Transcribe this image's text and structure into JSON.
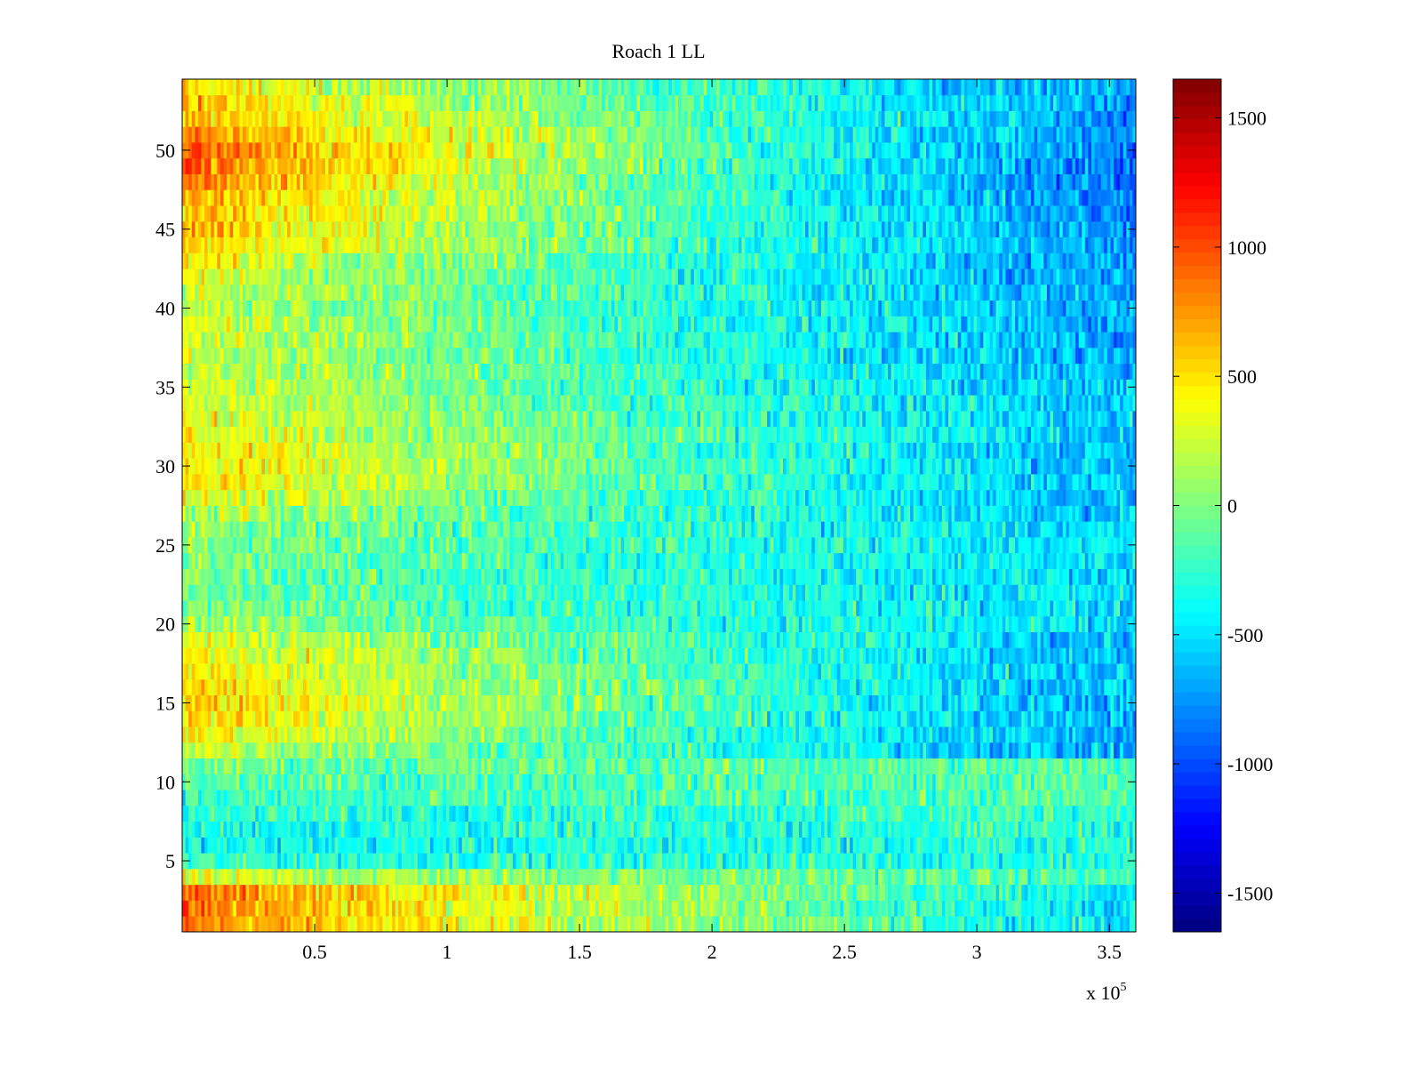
{
  "chart_data": {
    "type": "heatmap",
    "title": "Roach 1 LL",
    "xlabel": "",
    "ylabel": "",
    "colormap": "jet",
    "xlim": [
      0,
      360000
    ],
    "ylim": [
      0.5,
      54.5
    ],
    "x_ticks": [
      50000,
      100000,
      150000,
      200000,
      250000,
      300000,
      350000
    ],
    "x_tick_labels": [
      "0.5",
      "1",
      "1.5",
      "2",
      "2.5",
      "3",
      "3.5"
    ],
    "x_exponent_label": {
      "prefix": "x 10",
      "power": "5"
    },
    "y_ticks": [
      5,
      10,
      15,
      20,
      25,
      30,
      35,
      40,
      45,
      50
    ],
    "y_tick_labels": [
      "5",
      "10",
      "15",
      "20",
      "25",
      "30",
      "35",
      "40",
      "45",
      "50"
    ],
    "rows": 54,
    "colorbar": {
      "range": [
        -1650,
        1650
      ],
      "ticks": [
        -1500,
        -1000,
        -500,
        0,
        500,
        1000,
        1500
      ],
      "tick_labels": [
        "-1500",
        "-1000",
        "-500",
        "0",
        "500",
        "1000",
        "1500"
      ]
    },
    "row_trend": {
      "description": "approximate mean value per row at x=0 and x=3.6e5 (noisy banded heatmap)",
      "row_start_value": [
        820,
        860,
        880,
        250,
        -250,
        -400,
        -350,
        -300,
        -250,
        -150,
        -50,
        300,
        450,
        550,
        600,
        550,
        500,
        450,
        350,
        150,
        0,
        -20,
        -30,
        -10,
        50,
        100,
        200,
        350,
        500,
        550,
        500,
        400,
        350,
        300,
        300,
        300,
        250,
        300,
        300,
        250,
        300,
        350,
        450,
        550,
        650,
        700,
        750,
        850,
        950,
        950,
        850,
        700,
        600,
        500
      ],
      "row_end_value": [
        -450,
        -500,
        -500,
        -200,
        -300,
        -300,
        -250,
        -200,
        -150,
        -150,
        -150,
        -700,
        -700,
        -700,
        -700,
        -650,
        -650,
        -650,
        -600,
        -550,
        -500,
        -500,
        -500,
        -500,
        -500,
        -550,
        -600,
        -650,
        -650,
        -650,
        -650,
        -600,
        -600,
        -600,
        -650,
        -650,
        -700,
        -700,
        -700,
        -700,
        -700,
        -750,
        -750,
        -750,
        -800,
        -800,
        -850,
        -900,
        -900,
        -850,
        -800,
        -750,
        -700,
        -700
      ],
      "noise_amplitude": 230
    }
  }
}
